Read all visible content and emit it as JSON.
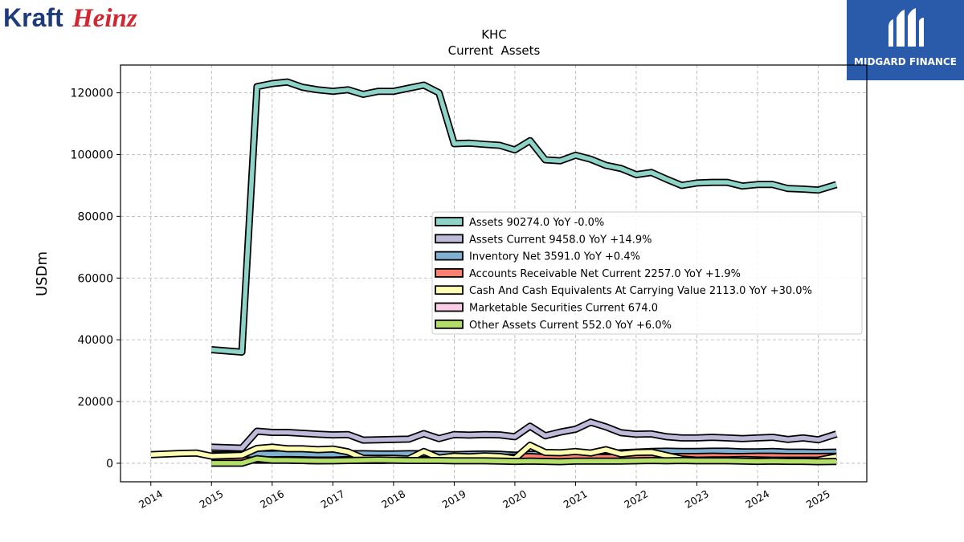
{
  "brand": {
    "left_logo_part1": "Kraft",
    "left_logo_part2": "Heinz",
    "right_logo_text": "MIDGARD FINANCE",
    "colors": {
      "kraft_blue": "#1f3c7a",
      "heinz_red": "#d22630",
      "midgard_bg": "#2a5bab"
    }
  },
  "chart_data": {
    "type": "line",
    "title": "KHC",
    "subtitle": "Current  Assets",
    "xlabel": "",
    "ylabel": "USDm",
    "xlim": [
      2013.5,
      2025.8
    ],
    "ylim": [
      -6000,
      129000
    ],
    "yticks": [
      0,
      20000,
      40000,
      60000,
      80000,
      100000,
      120000
    ],
    "xticks": [
      "2014",
      "2015",
      "2016",
      "2017",
      "2018",
      "2019",
      "2020",
      "2021",
      "2022",
      "2023",
      "2024",
      "2025"
    ],
    "grid": true,
    "legend_position": "center-right",
    "series": [
      {
        "name": "Assets",
        "legend_label": "Assets  90274.0 YoY -0.0%",
        "color": "#8dd3c7",
        "x": [
          2015.0,
          2015.5,
          2015.75,
          2016.0,
          2016.25,
          2016.5,
          2016.75,
          2017.0,
          2017.25,
          2017.5,
          2017.75,
          2018.0,
          2018.25,
          2018.5,
          2018.75,
          2019.0,
          2019.25,
          2019.5,
          2019.75,
          2020.0,
          2020.25,
          2020.5,
          2020.75,
          2021.0,
          2021.25,
          2021.5,
          2021.75,
          2022.0,
          2022.25,
          2022.5,
          2022.75,
          2023.0,
          2023.25,
          2023.5,
          2023.75,
          2024.0,
          2024.25,
          2024.5,
          2024.75,
          2025.0,
          2025.3
        ],
        "y": [
          36800,
          36000,
          122000,
          123000,
          123500,
          121800,
          121000,
          120500,
          121000,
          119500,
          120500,
          120500,
          121500,
          122500,
          120000,
          103500,
          103700,
          103300,
          103000,
          101500,
          104500,
          98300,
          98000,
          99800,
          98500,
          96500,
          95500,
          93500,
          94200,
          92000,
          90000,
          90800,
          91000,
          91000,
          89800,
          90300,
          90300,
          89000,
          88800,
          88500,
          90274
        ]
      },
      {
        "name": "Assets Current",
        "legend_label": "Assets Current  9458.0 YoY +14.9%",
        "color": "#bebada",
        "x": [
          2015.0,
          2015.5,
          2015.75,
          2016.0,
          2016.25,
          2016.5,
          2016.75,
          2017.0,
          2017.25,
          2017.5,
          2017.75,
          2018.0,
          2018.25,
          2018.5,
          2018.75,
          2019.0,
          2019.25,
          2019.5,
          2019.75,
          2020.0,
          2020.25,
          2020.5,
          2020.75,
          2021.0,
          2021.25,
          2021.5,
          2021.75,
          2022.0,
          2022.25,
          2022.5,
          2022.75,
          2023.0,
          2023.25,
          2023.5,
          2023.75,
          2024.0,
          2024.25,
          2024.5,
          2024.75,
          2025.0,
          2025.3
        ],
        "y": [
          5200,
          4900,
          10400,
          10000,
          10000,
          9700,
          9400,
          9200,
          9300,
          7500,
          7600,
          7700,
          7800,
          9600,
          8000,
          9300,
          9100,
          9300,
          9200,
          8600,
          12000,
          8900,
          10100,
          11000,
          13300,
          11800,
          9900,
          9400,
          9500,
          8600,
          8200,
          8200,
          8400,
          8200,
          8000,
          8200,
          8400,
          7700,
          8200,
          7600,
          9458
        ]
      },
      {
        "name": "Inventory Net",
        "legend_label": "Inventory Net  3591.0 YoY +0.4%",
        "color": "#80b1d3",
        "x": [
          2015.0,
          2015.5,
          2015.75,
          2016.0,
          2016.25,
          2016.5,
          2016.75,
          2017.0,
          2017.25,
          2017.5,
          2017.75,
          2018.0,
          2018.25,
          2018.5,
          2018.75,
          2019.0,
          2019.25,
          2019.5,
          2019.75,
          2020.0,
          2020.25,
          2020.5,
          2020.75,
          2021.0,
          2021.25,
          2021.5,
          2021.75,
          2022.0,
          2022.25,
          2022.5,
          2022.75,
          2023.0,
          2023.25,
          2023.5,
          2023.75,
          2024.0,
          2024.25,
          2024.5,
          2024.75,
          2025.0,
          2025.3
        ],
        "y": [
          2800,
          2700,
          3000,
          3000,
          3100,
          3000,
          2900,
          2900,
          3100,
          3100,
          3000,
          3000,
          3100,
          3100,
          2900,
          2800,
          2900,
          3000,
          2900,
          2600,
          2900,
          2900,
          2800,
          2800,
          3100,
          3100,
          3400,
          3600,
          3800,
          3900,
          3800,
          3800,
          3900,
          3900,
          3700,
          3700,
          3800,
          3600,
          3600,
          3500,
          3591
        ]
      },
      {
        "name": "Accounts Receivable Net Current",
        "legend_label": "Accounts Receivable Net Current  2257.0 YoY +1.9%",
        "color": "#fb8072",
        "x": [
          2015.0,
          2015.5,
          2015.75,
          2016.0,
          2016.25,
          2016.5,
          2016.75,
          2017.0,
          2017.25,
          2017.5,
          2017.75,
          2018.0,
          2018.25,
          2018.5,
          2018.75,
          2019.0,
          2019.25,
          2019.5,
          2019.75,
          2020.0,
          2020.25,
          2020.5,
          2020.75,
          2021.0,
          2021.25,
          2021.5,
          2021.75,
          2022.0,
          2022.25,
          2022.5,
          2022.75,
          2023.0,
          2023.25,
          2023.5,
          2023.75,
          2024.0,
          2024.25,
          2024.5,
          2024.75,
          2025.0,
          2025.3
        ],
        "y": [
          1200,
          1100,
          1000,
          1000,
          1000,
          900,
          800,
          900,
          900,
          900,
          900,
          1000,
          1000,
          1000,
          1100,
          1900,
          2000,
          2000,
          1900,
          2000,
          2200,
          1900,
          1900,
          2000,
          1900,
          1900,
          1900,
          2000,
          2100,
          2100,
          2200,
          2200,
          2300,
          2200,
          2200,
          2300,
          2300,
          2200,
          2200,
          2200,
          2257
        ]
      },
      {
        "name": "Cash And Cash Equivalents At Carrying Value",
        "legend_label": "Cash And Cash Equivalents At Carrying Value  2113.0 YoY +30.0%",
        "color": "#ffffb3",
        "x": [
          2014.0,
          2014.5,
          2014.75,
          2015.0,
          2015.5,
          2015.75,
          2016.0,
          2016.25,
          2016.5,
          2016.75,
          2017.0,
          2017.25,
          2017.5,
          2017.75,
          2018.0,
          2018.25,
          2018.5,
          2018.75,
          2019.0,
          2019.25,
          2019.5,
          2019.75,
          2020.0,
          2020.25,
          2020.5,
          2020.75,
          2021.0,
          2021.25,
          2021.5,
          2021.75,
          2022.0,
          2022.25,
          2022.5,
          2022.75,
          2023.0,
          2023.25,
          2023.5,
          2023.75,
          2024.0,
          2024.25,
          2024.5,
          2024.75,
          2025.0,
          2025.3
        ],
        "y": [
          2800,
          3200,
          3300,
          2300,
          2600,
          4800,
          5200,
          4700,
          4700,
          4400,
          4600,
          3700,
          1600,
          1600,
          1600,
          1400,
          3800,
          1700,
          2300,
          2100,
          2400,
          2200,
          1500,
          5800,
          3500,
          3400,
          3800,
          3300,
          4400,
          3000,
          3500,
          3600,
          2500,
          1400,
          1000,
          1100,
          1100,
          1200,
          1100,
          1000,
          1000,
          1000,
          1000,
          2113
        ]
      },
      {
        "name": "Marketable Securities Current",
        "legend_label": "Marketable Securities Current  674.0",
        "color": "#fccde5",
        "x": [
          2024.5,
          2024.75,
          2025.0
        ],
        "y": [
          674,
          674,
          674
        ]
      },
      {
        "name": "Other Assets Current",
        "legend_label": "Other Assets Current  552.0 YoY +6.0%",
        "color": "#b3de69",
        "x": [
          2015.0,
          2015.5,
          2015.75,
          2016.0,
          2016.25,
          2016.5,
          2016.75,
          2017.0,
          2017.25,
          2017.5,
          2017.75,
          2018.0,
          2018.25,
          2018.5,
          2018.75,
          2019.0,
          2019.25,
          2019.5,
          2019.75,
          2020.0,
          2020.25,
          2020.5,
          2020.75,
          2021.0,
          2021.25,
          2021.5,
          2021.75,
          2022.0,
          2022.25,
          2022.5,
          2022.75,
          2023.0,
          2023.25,
          2023.5,
          2023.75,
          2024.0,
          2024.25,
          2024.5,
          2024.75,
          2025.0,
          2025.3
        ],
        "y": [
          0,
          0,
          1500,
          1000,
          1000,
          900,
          800,
          800,
          900,
          1000,
          1100,
          1000,
          900,
          900,
          900,
          800,
          800,
          800,
          700,
          600,
          700,
          600,
          500,
          700,
          700,
          700,
          700,
          800,
          900,
          800,
          900,
          800,
          800,
          800,
          700,
          600,
          700,
          600,
          600,
          500,
          552
        ]
      }
    ]
  }
}
